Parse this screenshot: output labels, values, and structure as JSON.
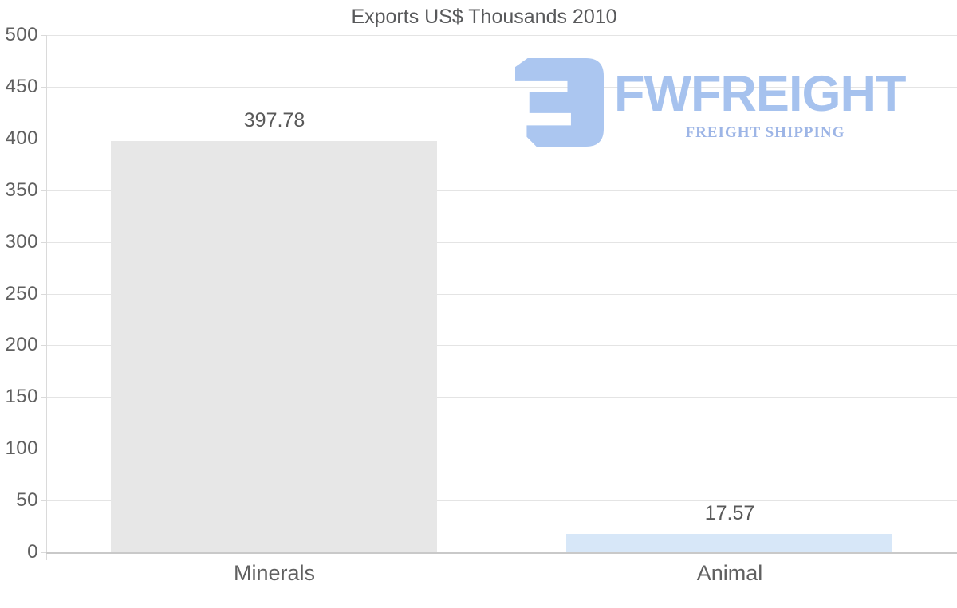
{
  "watermark": {
    "wordmark": "FWFREIGHT",
    "subtitle": "FREIGHT SHIPPING",
    "mark_icon": "fwfreight-e-mark",
    "mark_color": "#abc6f0",
    "wordmark_color": "#a6c2ee",
    "subtitle_color": "#9db5e6"
  },
  "chart_data": {
    "type": "bar",
    "title": "Exports US$ Thousands 2010",
    "categories": [
      "Minerals",
      "Animal"
    ],
    "values": [
      397.78,
      17.57
    ],
    "value_labels": [
      "397.78",
      "17.57"
    ],
    "bar_colors": [
      "#e7e7e7",
      "#d7e7f8"
    ],
    "xlabel": "",
    "ylabel": "",
    "ylim": [
      0,
      500
    ],
    "yticks": [
      0,
      50,
      100,
      150,
      200,
      250,
      300,
      350,
      400,
      450,
      500
    ],
    "grid": true,
    "legend": false
  },
  "style": {
    "background": "#ffffff",
    "axis_text_color": "#606060",
    "title_color": "#58595b",
    "value_label_color": "#595959",
    "grid_color": "#e4e4e4",
    "axis_line_color": "#dadada",
    "zero_line_color": "#c9c9c9"
  }
}
